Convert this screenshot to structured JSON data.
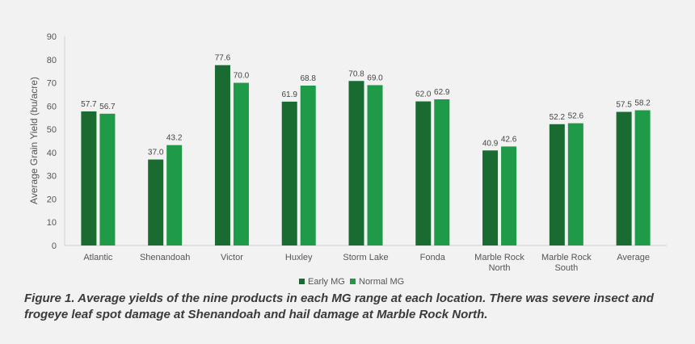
{
  "chart_data": {
    "type": "bar",
    "ylabel": "Average Grain Yield (bu/acre)",
    "xlabel": "",
    "ylim": [
      0,
      90
    ],
    "yticks": [
      0,
      10,
      20,
      30,
      40,
      50,
      60,
      70,
      80,
      90
    ],
    "grid": false,
    "legend_position": "bottom-center",
    "categories": [
      [
        "Atlantic"
      ],
      [
        "Shenandoah"
      ],
      [
        "Victor"
      ],
      [
        "Huxley"
      ],
      [
        "Storm Lake"
      ],
      [
        "Fonda"
      ],
      [
        "Marble Rock",
        "North"
      ],
      [
        "Marble Rock",
        "South"
      ],
      [
        "Average"
      ]
    ],
    "series": [
      {
        "name": "Early MG",
        "color": "#1a6b32",
        "values": [
          57.7,
          37.0,
          77.6,
          61.9,
          70.8,
          62.0,
          40.9,
          52.2,
          57.5
        ],
        "labels": [
          "57.7",
          "37.0",
          "77.6",
          "61.9",
          "70.8",
          "62.0",
          "40.9",
          "52.2",
          "57.5"
        ]
      },
      {
        "name": "Normal MG",
        "color": "#1f9a48",
        "values": [
          56.7,
          43.2,
          70.0,
          68.8,
          69.0,
          62.9,
          42.6,
          52.6,
          58.2
        ],
        "labels": [
          "56.7",
          "43.2",
          "70.0",
          "68.8",
          "69.0",
          "62.9",
          "42.6",
          "52.6",
          "58.2"
        ]
      }
    ]
  },
  "caption": "Figure 1. Average yields of the nine products in each MG range at each location. There was severe insect and frogeye leaf spot damage at Shenandoah and hail damage at Marble Rock North."
}
